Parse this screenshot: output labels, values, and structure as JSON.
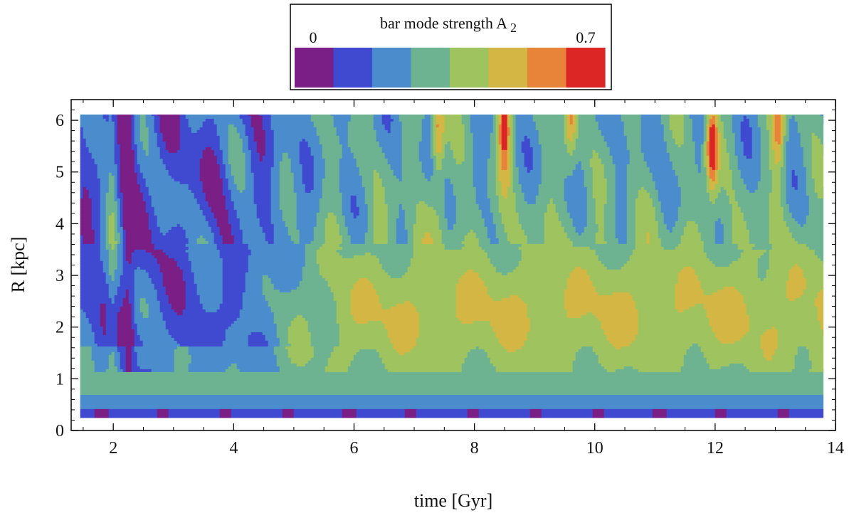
{
  "chart_data": {
    "type": "heatmap",
    "plot_style": "filled-contour",
    "title": "",
    "xlabel": "time [Gyr]",
    "ylabel": "R [kpc]",
    "xlim": [
      1.3,
      14.0
    ],
    "ylim": [
      0,
      6.4
    ],
    "data_x_range": [
      1.45,
      13.8
    ],
    "data_y_range": [
      0.25,
      6.25
    ],
    "xticks": [
      2,
      4,
      6,
      8,
      10,
      12,
      14
    ],
    "yticks": [
      0,
      1,
      2,
      3,
      4,
      5,
      6
    ],
    "colorbar": {
      "label": "bar mode strength A",
      "label_subscript": "2",
      "min": 0,
      "max": 0.7,
      "min_label": "0",
      "max_label": "0.7",
      "levels": 8,
      "colors": [
        "#7a1f85",
        "#3f4ad0",
        "#4a8ccc",
        "#6db291",
        "#9fc35e",
        "#d4b645",
        "#e8833a",
        "#dc2626"
      ]
    },
    "features": {
      "inner_bands": [
        {
          "R": 0.3,
          "A2": 0.12
        },
        {
          "R": 0.55,
          "A2": 0.2
        },
        {
          "R": 0.8,
          "A2": 0.28
        },
        {
          "R": 1.05,
          "A2": 0.33
        }
      ],
      "bar_plateau": {
        "t_start": 5.0,
        "t_end": 13.8,
        "R_min": 1.1,
        "R_max": 3.5,
        "A2": 0.4
      },
      "hotspots": [
        {
          "t": 7.4,
          "R": 5.8,
          "A2": 0.55
        },
        {
          "t": 8.5,
          "R": 5.9,
          "A2": 0.62
        },
        {
          "t": 9.6,
          "R": 6.2,
          "A2": 0.52
        },
        {
          "t": 11.95,
          "R": 5.5,
          "A2": 0.68
        },
        {
          "t": 13.05,
          "R": 5.9,
          "A2": 0.5
        }
      ]
    }
  }
}
